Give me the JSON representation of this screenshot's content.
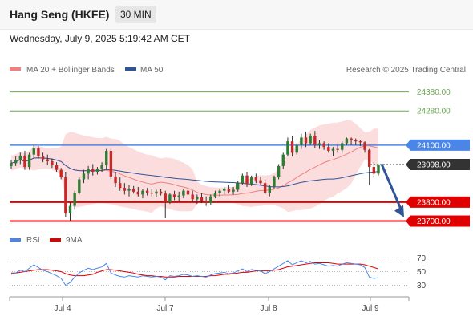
{
  "header": {
    "title": "Hang Seng (HKFE)",
    "interval": "30 MIN"
  },
  "timestamp": "Wednesday, July 9, 2025 5:19:42 AM CET",
  "legend": {
    "ma20": {
      "label": "MA 20 + Bollinger Bands",
      "color": "#f08080"
    },
    "ma50": {
      "label": "MA 50",
      "color": "#2f5597"
    },
    "credit": "Research © 2025 Trading Central"
  },
  "chart_data": {
    "type": "candlestick",
    "ylim": [
      23660,
      24450
    ],
    "x_labels": [
      "Jul 4",
      "Jul 7",
      "Jul 8",
      "Jul 9"
    ],
    "levels": [
      {
        "value": 24380.0,
        "label": "24380.00",
        "kind": "target",
        "color": "#6aa84f"
      },
      {
        "value": 24280.0,
        "label": "24280.00",
        "kind": "target",
        "color": "#6aa84f"
      },
      {
        "value": 24100.0,
        "label": "24100.00",
        "kind": "pivot",
        "color": "#4a86e8"
      },
      {
        "value": 23998.0,
        "label": "23998.00",
        "kind": "last",
        "color": "#333333"
      },
      {
        "value": 23800.0,
        "label": "23800.00",
        "kind": "support",
        "color": "#e00000"
      },
      {
        "value": 23700.0,
        "label": "23700.00",
        "kind": "support",
        "color": "#e00000"
      }
    ],
    "forecast_arrow": {
      "from": 24000,
      "to": 23720
    },
    "candles": [
      [
        23990,
        24020,
        23975,
        24005
      ],
      [
        24005,
        24040,
        23990,
        24020
      ],
      [
        24020,
        24060,
        24000,
        24045
      ],
      [
        24045,
        24070,
        23970,
        23985
      ],
      [
        23985,
        24060,
        23970,
        24050
      ],
      [
        24050,
        24100,
        24030,
        24085
      ],
      [
        24085,
        24095,
        24030,
        24040
      ],
      [
        24040,
        24060,
        24010,
        24025
      ],
      [
        24025,
        24050,
        23995,
        24015
      ],
      [
        24015,
        24030,
        23980,
        23995
      ],
      [
        23995,
        24010,
        23960,
        23970
      ],
      [
        23970,
        23980,
        23920,
        23930
      ],
      [
        23930,
        23960,
        23720,
        23740
      ],
      [
        23740,
        23800,
        23700,
        23780
      ],
      [
        23780,
        23860,
        23760,
        23850
      ],
      [
        23850,
        23930,
        23840,
        23920
      ],
      [
        23920,
        23970,
        23900,
        23950
      ],
      [
        23950,
        23990,
        23920,
        23975
      ],
      [
        23975,
        24000,
        23940,
        23960
      ],
      [
        23960,
        23985,
        23945,
        23975
      ],
      [
        23975,
        24010,
        23960,
        23995
      ],
      [
        23995,
        24080,
        23970,
        24070
      ],
      [
        24070,
        24085,
        23920,
        23935
      ],
      [
        23935,
        23960,
        23880,
        23900
      ],
      [
        23900,
        23930,
        23860,
        23875
      ],
      [
        23875,
        23900,
        23840,
        23860
      ],
      [
        23860,
        23890,
        23830,
        23870
      ],
      [
        23870,
        23885,
        23845,
        23855
      ],
      [
        23855,
        23880,
        23830,
        23840
      ],
      [
        23840,
        23870,
        23820,
        23860
      ],
      [
        23860,
        23875,
        23835,
        23850
      ],
      [
        23850,
        23870,
        23830,
        23845
      ],
      [
        23845,
        23865,
        23825,
        23855
      ],
      [
        23855,
        23870,
        23835,
        23845
      ],
      [
        23845,
        23860,
        23715,
        23800
      ],
      [
        23800,
        23850,
        23790,
        23840
      ],
      [
        23840,
        23860,
        23810,
        23825
      ],
      [
        23825,
        23855,
        23805,
        23835
      ],
      [
        23835,
        23870,
        23820,
        23860
      ],
      [
        23860,
        23875,
        23830,
        23840
      ],
      [
        23840,
        23860,
        23800,
        23815
      ],
      [
        23815,
        23840,
        23790,
        23825
      ],
      [
        23825,
        23850,
        23795,
        23805
      ],
      [
        23805,
        23830,
        23780,
        23795
      ],
      [
        23795,
        23840,
        23785,
        23830
      ],
      [
        23830,
        23860,
        23820,
        23850
      ],
      [
        23850,
        23870,
        23830,
        23860
      ],
      [
        23860,
        23880,
        23840,
        23870
      ],
      [
        23870,
        23890,
        23845,
        23855
      ],
      [
        23855,
        23880,
        23840,
        23865
      ],
      [
        23865,
        23910,
        23855,
        23900
      ],
      [
        23900,
        23950,
        23890,
        23940
      ],
      [
        23940,
        23960,
        23880,
        23895
      ],
      [
        23895,
        23940,
        23885,
        23930
      ],
      [
        23930,
        23950,
        23900,
        23915
      ],
      [
        23915,
        23935,
        23890,
        23900
      ],
      [
        23900,
        23920,
        23840,
        23850
      ],
      [
        23850,
        23890,
        23830,
        23880
      ],
      [
        23880,
        23940,
        23870,
        23930
      ],
      [
        23930,
        24000,
        23920,
        23990
      ],
      [
        23990,
        24060,
        23975,
        24050
      ],
      [
        24050,
        24140,
        24040,
        24120
      ],
      [
        24120,
        24150,
        24040,
        24060
      ],
      [
        24060,
        24110,
        24050,
        24100
      ],
      [
        24100,
        24160,
        24080,
        24140
      ],
      [
        24140,
        24170,
        24090,
        24110
      ],
      [
        24110,
        24160,
        24100,
        24150
      ],
      [
        24150,
        24175,
        24085,
        24100
      ],
      [
        24100,
        24125,
        24080,
        24110
      ],
      [
        24110,
        24120,
        24075,
        24090
      ],
      [
        24090,
        24110,
        24060,
        24070
      ],
      [
        24070,
        24090,
        24040,
        24080
      ],
      [
        24080,
        24100,
        24060,
        24075
      ],
      [
        24075,
        24120,
        24060,
        24110
      ],
      [
        24110,
        24140,
        24100,
        24135
      ],
      [
        24135,
        24140,
        24100,
        24125
      ],
      [
        24125,
        24135,
        24100,
        24120
      ],
      [
        24120,
        24125,
        24095,
        24115
      ],
      [
        24115,
        24120,
        24060,
        24075
      ],
      [
        24075,
        24080,
        23890,
        23985
      ],
      [
        23985,
        24010,
        23935,
        23950
      ],
      [
        23950,
        24000,
        23940,
        23998
      ]
    ],
    "rsi": {
      "label": "RSI",
      "color": "#4a86e8",
      "ma_label": "9MA",
      "ma_color": "#e00000",
      "ylim": [
        20,
        80
      ],
      "ticks": [
        70,
        50,
        30
      ],
      "values": [
        46,
        48,
        52,
        50,
        55,
        60,
        56,
        52,
        50,
        47,
        44,
        40,
        30,
        34,
        42,
        48,
        52,
        55,
        53,
        55,
        57,
        62,
        48,
        45,
        43,
        42,
        44,
        43,
        42,
        44,
        43,
        42,
        43,
        42,
        38,
        44,
        43,
        44,
        46,
        45,
        43,
        44,
        43,
        42,
        45,
        47,
        48,
        49,
        47,
        48,
        51,
        54,
        50,
        53,
        52,
        51,
        47,
        50,
        54,
        58,
        62,
        66,
        60,
        63,
        66,
        63,
        65,
        61,
        62,
        60,
        58,
        59,
        58,
        61,
        63,
        62,
        61,
        60,
        56,
        42,
        40,
        41
      ],
      "ma_values": [
        48,
        48,
        49,
        50,
        51,
        52,
        53,
        53,
        53,
        52,
        51,
        50,
        47,
        45,
        44,
        44,
        44,
        45,
        46,
        49,
        51,
        53,
        53,
        52,
        51,
        50,
        49,
        48,
        46,
        45,
        44,
        44,
        43,
        43,
        42,
        42,
        42,
        43,
        43,
        43,
        43,
        43,
        43,
        43,
        44,
        44,
        45,
        46,
        46,
        47,
        48,
        49,
        49,
        50,
        51,
        51,
        51,
        51,
        52,
        53,
        55,
        57,
        58,
        59,
        60,
        61,
        62,
        63,
        63,
        63,
        63,
        62,
        61,
        61,
        61,
        61,
        61,
        61,
        60,
        58,
        56,
        54
      ]
    }
  }
}
